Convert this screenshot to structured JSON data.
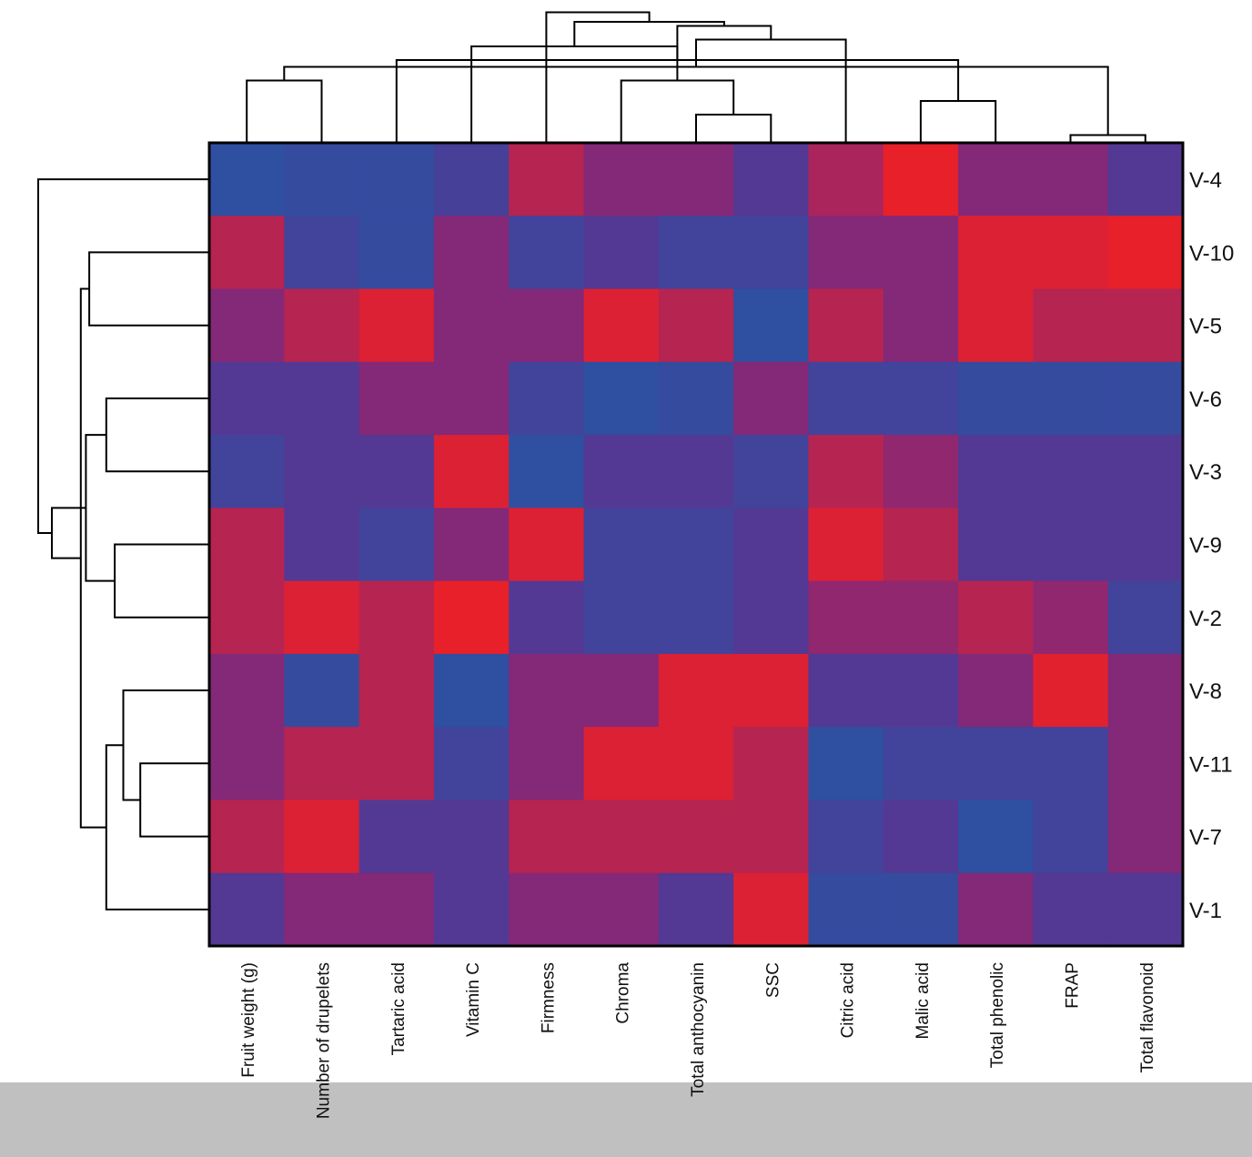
{
  "chart_data": {
    "type": "heatmap",
    "title": "",
    "xlabel": "",
    "ylabel": "",
    "columns": [
      "Fruit weight (g)",
      "Number of drupelets",
      "Tartaric acid",
      "Vitamin C",
      "Firmness",
      "Chroma",
      "Total anthocyanin",
      "SSC",
      "Citric acid",
      "Malic acid",
      "Total phenolic",
      "FRAP",
      "Total flavonoid"
    ],
    "rows": [
      "V-4",
      "V-10",
      "V-5",
      "V-6",
      "V-3",
      "V-9",
      "V-2",
      "V-8",
      "V-11",
      "V-7",
      "V-1"
    ],
    "color_scale": {
      "low": "#2f4fa0",
      "mid": "#6b2a8c",
      "high": "#e8202a"
    },
    "values": [
      [
        -1.0,
        -0.9,
        -0.9,
        -0.6,
        0.6,
        0.2,
        0.2,
        -0.4,
        0.5,
        1.0,
        0.2,
        0.2,
        -0.4
      ],
      [
        0.6,
        -0.7,
        -0.9,
        0.2,
        -0.7,
        -0.4,
        -0.7,
        -0.7,
        0.2,
        0.2,
        0.9,
        0.9,
        1.0
      ],
      [
        0.2,
        0.6,
        0.9,
        0.2,
        0.2,
        0.9,
        0.6,
        -1.0,
        0.6,
        0.2,
        0.9,
        0.6,
        0.6
      ],
      [
        -0.4,
        -0.4,
        0.2,
        0.2,
        -0.7,
        -1.0,
        -0.9,
        0.2,
        -0.7,
        -0.7,
        -0.9,
        -0.9,
        -0.9
      ],
      [
        -0.7,
        -0.4,
        -0.4,
        0.9,
        -1.0,
        -0.4,
        -0.4,
        -0.7,
        0.6,
        0.3,
        -0.4,
        -0.4,
        -0.4
      ],
      [
        0.6,
        -0.4,
        -0.7,
        0.2,
        0.9,
        -0.7,
        -0.7,
        -0.4,
        0.9,
        0.6,
        -0.4,
        -0.4,
        -0.4
      ],
      [
        0.6,
        0.9,
        0.6,
        1.0,
        -0.4,
        -0.7,
        -0.7,
        -0.4,
        0.3,
        0.3,
        0.6,
        0.3,
        -0.7
      ],
      [
        0.2,
        -0.9,
        0.6,
        -1.0,
        0.2,
        0.2,
        0.9,
        0.9,
        -0.4,
        -0.4,
        0.2,
        0.95,
        0.2
      ],
      [
        0.2,
        0.6,
        0.6,
        -0.7,
        0.2,
        0.9,
        0.9,
        0.6,
        -1.0,
        -0.7,
        -0.7,
        -0.7,
        0.2
      ],
      [
        0.6,
        0.9,
        -0.4,
        -0.4,
        0.6,
        0.6,
        0.6,
        0.6,
        -0.7,
        -0.4,
        -1.0,
        -0.7,
        0.2
      ],
      [
        -0.4,
        0.2,
        0.2,
        -0.4,
        0.2,
        0.2,
        -0.4,
        0.9,
        -0.9,
        -0.9,
        0.2,
        -0.4,
        -0.4
      ]
    ],
    "column_dendrogram": {
      "leaf_order": [
        "Fruit weight (g)",
        "Number of drupelets",
        "Tartaric acid",
        "Vitamin C",
        "Firmness",
        "Chroma",
        "Total anthocyanin",
        "SSC",
        "Citric acid",
        "Malic acid",
        "Total phenolic",
        "FRAP",
        "Total flavonoid"
      ],
      "merges": [
        [
          11,
          12,
          0.05
        ],
        [
          6,
          7,
          0.2
        ],
        [
          0,
          1,
          0.45
        ],
        [
          9,
          10,
          0.3
        ],
        [
          5,
          14,
          0.45
        ],
        [
          13,
          15,
          0.55
        ],
        [
          2,
          16,
          0.6
        ],
        [
          3,
          19,
          0.7
        ],
        [
          8,
          18,
          0.75
        ],
        [
          17,
          21,
          0.85
        ],
        [
          20,
          22,
          0.88
        ],
        [
          4,
          23,
          0.95
        ]
      ]
    },
    "row_dendrogram": {
      "leaf_order": [
        "V-4",
        "V-10",
        "V-5",
        "V-6",
        "V-3",
        "V-9",
        "V-2",
        "V-8",
        "V-11",
        "V-7",
        "V-1"
      ],
      "merges": [
        [
          1,
          2,
          0.7
        ],
        [
          3,
          4,
          0.6
        ],
        [
          5,
          6,
          0.55
        ],
        [
          8,
          9,
          0.4
        ],
        [
          7,
          14,
          0.5
        ],
        [
          10,
          15,
          0.6
        ],
        [
          12,
          13,
          0.72
        ],
        [
          16,
          11,
          0.75
        ],
        [
          17,
          18,
          0.92
        ],
        [
          0,
          19,
          1.0
        ]
      ]
    }
  }
}
